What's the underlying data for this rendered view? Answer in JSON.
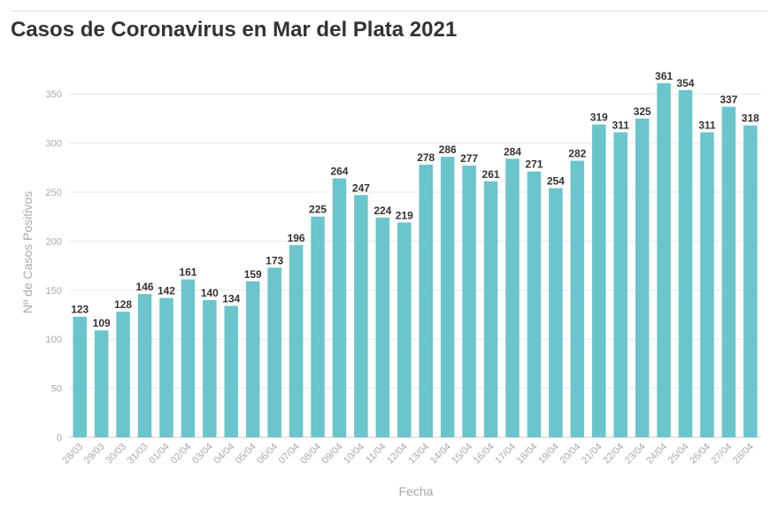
{
  "page": {
    "title": "Casos de Coronavirus en Mar del Plata 2021"
  },
  "colors": {
    "bar": "#6bc5cc",
    "gridline": "#e8e8e8",
    "axis_text": "#aaaaaa",
    "label_text": "#333333"
  },
  "chart_data": {
    "type": "bar",
    "title": "Casos de Coronavirus en Mar del Plata 2021",
    "xlabel": "Fecha",
    "ylabel": "Nº de Casos Positivos",
    "ylim": [
      0,
      380
    ],
    "yticks": [
      0,
      50,
      100,
      150,
      200,
      250,
      300,
      350
    ],
    "grid": true,
    "categories": [
      "28/03",
      "29/03",
      "30/03",
      "31/03",
      "01/04",
      "02/04",
      "03/04",
      "04/04",
      "05/04",
      "06/04",
      "07/04",
      "08/04",
      "09/04",
      "10/04",
      "11/04",
      "12/04",
      "13/04",
      "14/04",
      "15/04",
      "16/04",
      "17/04",
      "18/04",
      "19/04",
      "20/04",
      "21/04",
      "22/04",
      "23/04",
      "24/04",
      "25/04",
      "26/04",
      "27/04",
      "28/04"
    ],
    "values": [
      123,
      109,
      128,
      146,
      142,
      161,
      140,
      134,
      159,
      173,
      196,
      225,
      264,
      247,
      224,
      219,
      278,
      286,
      277,
      261,
      284,
      271,
      254,
      282,
      319,
      311,
      325,
      361,
      354,
      311,
      337,
      318
    ]
  }
}
